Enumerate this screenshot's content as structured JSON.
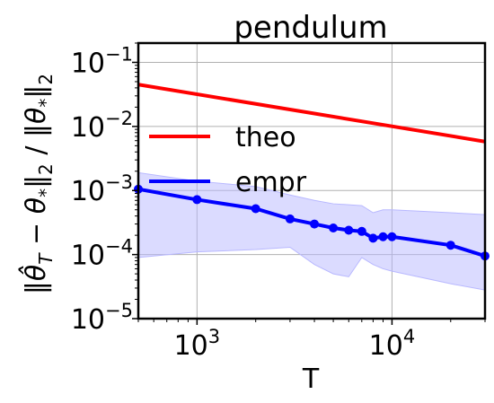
{
  "chart_data": {
    "type": "line",
    "title": "pendulum",
    "xlabel": "T",
    "ylabel": "‖θ̂_T − θ*‖₂ / ‖θ*‖₂",
    "xscale": "log",
    "yscale": "log",
    "xlim": [
      500,
      30000
    ],
    "ylim": [
      1e-05,
      0.2
    ],
    "grid": true,
    "legend_position": "center-left",
    "x_tick_labels": [
      {
        "base": "10",
        "exp": "3",
        "value": 1000
      },
      {
        "base": "10",
        "exp": "4",
        "value": 10000
      }
    ],
    "y_tick_labels": [
      {
        "base": "10",
        "exp": "−1",
        "value": 0.1
      },
      {
        "base": "10",
        "exp": "−2",
        "value": 0.01
      },
      {
        "base": "10",
        "exp": "−3",
        "value": 0.001
      },
      {
        "base": "10",
        "exp": "−4",
        "value": 0.0001
      },
      {
        "base": "10",
        "exp": "−5",
        "value": 1e-05
      }
    ],
    "series": [
      {
        "name": "theo",
        "color": "#ff0000",
        "marker": false,
        "x": [
          500,
          30000
        ],
        "y": [
          0.045,
          0.0058
        ]
      },
      {
        "name": "empr",
        "color": "#0000ff",
        "marker": true,
        "x": [
          500,
          1000,
          2000,
          3000,
          4000,
          5000,
          6000,
          7000,
          8000,
          9000,
          10000,
          20000,
          30000
        ],
        "y": [
          0.00105,
          0.00072,
          0.00052,
          0.00036,
          0.0003,
          0.00026,
          0.00024,
          0.00023,
          0.00018,
          0.00019,
          0.00019,
          0.00014,
          9.5e-05
        ],
        "band": {
          "color": "#b8b8ff",
          "upper": [
            0.0019,
            0.0014,
            0.00115,
            0.00085,
            0.0007,
            0.00062,
            0.0006,
            0.00058,
            0.00045,
            0.0005,
            0.0005,
            0.00045,
            0.00042
          ],
          "lower": [
            9e-05,
            0.00011,
            0.00012,
            0.00013,
            7e-05,
            5e-05,
            4.5e-05,
            9e-05,
            7e-05,
            6e-05,
            5.5e-05,
            3.5e-05,
            2.8e-05
          ]
        }
      }
    ]
  }
}
